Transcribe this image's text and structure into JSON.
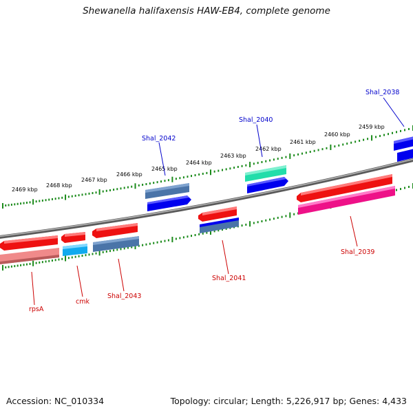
{
  "title": "Shewanella halifaxensis HAW-EB4, complete genome",
  "footer": {
    "accession": "Accession: NC_010334",
    "summary": "Topology: circular; Length: 5,226,917 bp; Genes: 4,433"
  },
  "colors": {
    "backbone": "#8a8a8a",
    "ticks": "#1a8a1a",
    "tick_label": "#000000",
    "label_forward": "#0000cc",
    "label_reverse": "#cc0000",
    "gene_red": "#ee1111",
    "gene_blue": "#0000ee",
    "gene_steel": "#4a74a8",
    "gene_pink": "#f08a8a",
    "gene_cyan": "#11aaee",
    "gene_green": "#22ddaa",
    "gene_magenta": "#ee1188"
  },
  "ruler_labels": [
    "2469 kbp",
    "2468 kbp",
    "2467 kbp",
    "2466 kbp",
    "2465 kbp",
    "2464 kbp",
    "2463 kbp",
    "2462 kbp",
    "2461 kbp",
    "2460 kbp",
    "2459 kbp"
  ],
  "gene_labels": [
    {
      "text": "Shal_2038",
      "strand": "forward"
    },
    {
      "text": "Shal_2040",
      "strand": "forward"
    },
    {
      "text": "Shal_2042",
      "strand": "forward"
    },
    {
      "text": "Shal_2039",
      "strand": "reverse"
    },
    {
      "text": "Shal_2041",
      "strand": "reverse"
    },
    {
      "text": "Shal_2043",
      "strand": "reverse"
    },
    {
      "text": "cmk",
      "strand": "reverse"
    },
    {
      "text": "rpsA",
      "strand": "reverse"
    }
  ],
  "features": [
    {
      "name": "Shal_2038",
      "strand": "forward",
      "color": "blue"
    },
    {
      "name": "Shal_2040",
      "strand": "forward",
      "color": "green"
    },
    {
      "name": "Shal_2040-cds",
      "strand": "forward",
      "color": "blue"
    },
    {
      "name": "Shal_2042",
      "strand": "forward",
      "color": "steel"
    },
    {
      "name": "Shal_2042-cds",
      "strand": "forward",
      "color": "blue"
    },
    {
      "name": "Shal_2039",
      "strand": "reverse",
      "color": "red"
    },
    {
      "name": "Shal_2039-cds",
      "strand": "reverse",
      "color": "magenta"
    },
    {
      "name": "Shal_2041",
      "strand": "reverse",
      "color": "red"
    },
    {
      "name": "Shal_2041-cds",
      "strand": "reverse",
      "color": "blue"
    },
    {
      "name": "Shal_2041-cds2",
      "strand": "reverse",
      "color": "steel"
    },
    {
      "name": "Shal_2043",
      "strand": "reverse",
      "color": "red"
    },
    {
      "name": "Shal_2043-cds",
      "strand": "reverse",
      "color": "steel"
    },
    {
      "name": "cmk",
      "strand": "reverse",
      "color": "red"
    },
    {
      "name": "cmk-cds",
      "strand": "reverse",
      "color": "cyan"
    },
    {
      "name": "rpsA",
      "strand": "reverse",
      "color": "red"
    },
    {
      "name": "rpsA-cds",
      "strand": "reverse",
      "color": "pink"
    }
  ]
}
